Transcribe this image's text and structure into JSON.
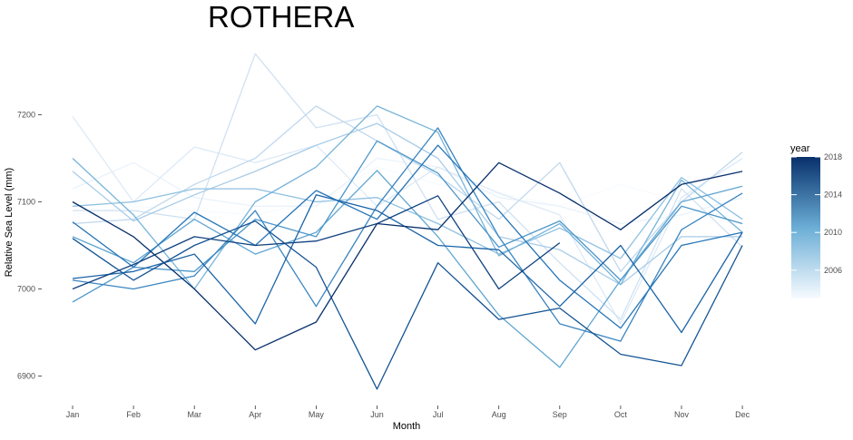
{
  "chart_data": {
    "type": "line",
    "title": "ROTHERA",
    "xlabel": "Month",
    "ylabel": "Relative Sea Level (mm)",
    "categories": [
      "Jan",
      "Feb",
      "Mar",
      "Apr",
      "May",
      "Jun",
      "Jul",
      "Aug",
      "Sep",
      "Oct",
      "Nov",
      "Dec"
    ],
    "ylim": [
      6865,
      7290
    ],
    "yticks": [
      6900,
      7000,
      7100,
      7200
    ],
    "grid": false,
    "legend": {
      "title": "year",
      "placement": "right",
      "type": "colorbar",
      "range": [
        2003,
        2018
      ],
      "ticks": [
        2006,
        2010,
        2014,
        2018
      ],
      "color_low": "#f7fbff",
      "color_high": "#08306b"
    },
    "series": [
      {
        "year": 2003,
        "values": [
          7085,
          7095,
          7090,
          7085,
          7100,
          7140,
          7120,
          7110,
          7095,
          7120,
          7100,
          7150
        ]
      },
      {
        "year": 2004,
        "values": [
          7115,
          7145,
          7105,
          7095,
          7095,
          7150,
          7140,
          7105,
          7095,
          7075,
          7085,
          7105
        ]
      },
      {
        "year": 2005,
        "values": [
          7198,
          7100,
          7163,
          7145,
          7165,
          7095,
          7140,
          7110,
          7085,
          6960,
          7105,
          7150
        ]
      },
      {
        "year": 2006,
        "values": [
          7090,
          7090,
          7080,
          7270,
          7185,
          7200,
          7080,
          7100,
          7030,
          6965,
          7115,
          7048
        ]
      },
      {
        "year": 2007,
        "values": [
          7075,
          7080,
          7120,
          7150,
          7210,
          7170,
          7130,
          7080,
          7145,
          7020,
          7100,
          7157
        ]
      },
      {
        "year": 2008,
        "values": [
          7135,
          7078,
          7108,
          7135,
          7165,
          7190,
          7150,
          7060,
          7045,
          7005,
          7060,
          7060
        ]
      },
      {
        "year": 2009,
        "values": [
          7095,
          7100,
          7115,
          7115,
          7100,
          7105,
          7075,
          7040,
          7070,
          7035,
          7128,
          7080
        ]
      },
      {
        "year": 2010,
        "values": [
          7150,
          7085,
          7000,
          7100,
          7140,
          7210,
          7180,
          7038,
          7075,
          7005,
          7125,
          7065
        ]
      },
      {
        "year": 2011,
        "values": [
          7060,
          7030,
          7080,
          7040,
          7065,
          7136,
          7060,
          6970,
          6910,
          7010,
          7100,
          7118
        ]
      },
      {
        "year": 2012,
        "values": [
          6985,
          7025,
          7020,
          7080,
          7060,
          7170,
          7133,
          7048,
          7078,
          7010,
          7095,
          7075
        ]
      },
      {
        "year": 2013,
        "values": [
          7010,
          7000,
          7015,
          7090,
          6980,
          7095,
          7185,
          7060,
          6960,
          6940,
          7068,
          7110
        ]
      },
      {
        "year": 2014,
        "values": [
          7077,
          7025,
          7088,
          7050,
          7113,
          7080,
          7165,
          7090,
          7010,
          6955,
          7050,
          7065
        ]
      },
      {
        "year": 2015,
        "values": [
          7012,
          7020,
          7040,
          6960,
          7108,
          7090,
          7050,
          7045,
          6980,
          7050,
          6950,
          7065
        ]
      },
      {
        "year": 2016,
        "values": [
          7058,
          7010,
          7050,
          7078,
          7025,
          6885,
          7030,
          6965,
          6978,
          6925,
          6912,
          7050
        ]
      },
      {
        "year": 2017,
        "values": [
          7000,
          7028,
          7060,
          7050,
          7055,
          7075,
          7107,
          7000,
          7053,
          null,
          null,
          null
        ]
      },
      {
        "year": 2018,
        "values": [
          7100,
          7060,
          7000,
          6930,
          6962,
          7075,
          7068,
          7145,
          7110,
          7068,
          7120,
          7135
        ]
      }
    ]
  }
}
